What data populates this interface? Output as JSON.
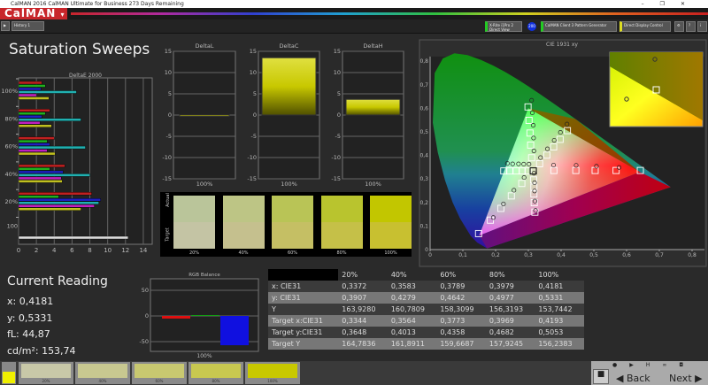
{
  "window": {
    "title": "CalMAN 2016 CalMAN Ultimate for Business 273 Days Remaining",
    "controls": [
      "–",
      "❐",
      "✕"
    ]
  },
  "logo": "CalMAN",
  "toolbar": {
    "tab": "History 1",
    "source1": "X-Rite i1Pro 2 Direct View",
    "badge": "200",
    "source2": "CalMAN Client 3 Pattern Generator",
    "source3": "Direct Display Control"
  },
  "page_title": "Saturation Sweeps",
  "colors": {
    "accent": "#c8262b",
    "yellow": "#c8c800",
    "red": "#e01010",
    "blue": "#1010e0"
  },
  "chart_data": [
    {
      "type": "bar",
      "title": "DeltaE 2000",
      "orientation": "horizontal",
      "xlim": [
        0,
        15
      ],
      "xticks": [
        "0",
        "2",
        "4",
        "6",
        "8",
        "10",
        "12",
        "14"
      ],
      "categories": [
        "100%",
        "80%",
        "60%",
        "40%",
        "20%",
        "100"
      ],
      "series_colors": [
        "#c02020",
        "#20b020",
        "#2020c0",
        "#20b0b0",
        "#c020c0",
        "#c0c020"
      ],
      "groups": [
        [
          2.6,
          3.0,
          2.5,
          6.5,
          2.0,
          3.4
        ],
        [
          3.5,
          3.0,
          2.6,
          7.0,
          2.4,
          3.7
        ],
        [
          4.0,
          3.2,
          3.5,
          7.5,
          3.2,
          4.1
        ],
        [
          5.2,
          3.5,
          5.0,
          8.0,
          4.8,
          4.9
        ],
        [
          8.2,
          4.5,
          9.2,
          9.0,
          8.5,
          7.0
        ],
        [
          12.3
        ]
      ]
    },
    {
      "type": "bar",
      "title": "DeltaL",
      "categories": [
        "100%"
      ],
      "values": [
        -0.3
      ],
      "ylim": [
        -15,
        15
      ],
      "yticks": [
        "15",
        "10",
        "5",
        "0",
        "-5",
        "-10",
        "-15"
      ]
    },
    {
      "type": "bar",
      "title": "DeltaC",
      "categories": [
        "100%"
      ],
      "values": [
        13.5
      ],
      "ylim": [
        -15,
        15
      ],
      "yticks": [
        "15",
        "10",
        "5",
        "0",
        "-5",
        "-10",
        "-15"
      ]
    },
    {
      "type": "bar",
      "title": "DeltaH",
      "categories": [
        "100%"
      ],
      "values": [
        3.7
      ],
      "ylim": [
        -15,
        15
      ],
      "yticks": [
        "15",
        "10",
        "5",
        "0",
        "-5",
        "-10",
        "-15"
      ]
    },
    {
      "type": "bar",
      "title": "RGB Balance",
      "categories": [
        "100%"
      ],
      "series": [
        {
          "color": "#e01010",
          "value": -5
        },
        {
          "color": "#10c010",
          "value": 0
        },
        {
          "color": "#1010e0",
          "value": -57
        }
      ],
      "ylim": [
        -60,
        60
      ],
      "yticks": [
        "50",
        "0",
        "-50"
      ]
    },
    {
      "type": "scatter",
      "title": "CIE 1931 xy",
      "xlim": [
        0,
        0.85
      ],
      "ylim": [
        0,
        0.85
      ],
      "xticks": [
        "0",
        "0,1",
        "0,2",
        "0,3",
        "0,4",
        "0,5",
        "0,6",
        "0,7",
        "0,8"
      ],
      "yticks": [
        "0",
        "0,1",
        "0,2",
        "0,3",
        "0,4",
        "0,5",
        "0,6",
        "0,7",
        "0,8"
      ],
      "targets": [
        [
          0.299,
          0.606
        ],
        [
          0.302,
          0.549
        ],
        [
          0.305,
          0.495
        ],
        [
          0.307,
          0.444
        ],
        [
          0.31,
          0.39
        ],
        [
          0.378,
          0.336
        ],
        [
          0.445,
          0.336
        ],
        [
          0.504,
          0.336
        ],
        [
          0.568,
          0.336
        ],
        [
          0.642,
          0.336
        ],
        [
          0.148,
          0.068
        ],
        [
          0.184,
          0.125
        ],
        [
          0.216,
          0.175
        ],
        [
          0.248,
          0.228
        ],
        [
          0.28,
          0.281
        ],
        [
          0.225,
          0.334
        ],
        [
          0.243,
          0.334
        ],
        [
          0.263,
          0.334
        ],
        [
          0.281,
          0.334
        ],
        [
          0.299,
          0.334
        ],
        [
          0.32,
          0.159
        ],
        [
          0.318,
          0.199
        ],
        [
          0.317,
          0.236
        ],
        [
          0.317,
          0.265
        ],
        [
          0.316,
          0.296
        ],
        [
          0.3344,
          0.3648
        ],
        [
          0.3564,
          0.4013
        ],
        [
          0.3773,
          0.4358
        ],
        [
          0.3969,
          0.4682
        ],
        [
          0.4193,
          0.5053
        ]
      ],
      "white_target": [
        0.315,
        0.334
      ],
      "measured": [
        [
          0.31,
          0.634
        ],
        [
          0.312,
          0.581
        ],
        [
          0.315,
          0.528
        ],
        [
          0.316,
          0.474
        ],
        [
          0.317,
          0.419
        ],
        [
          0.377,
          0.359
        ],
        [
          0.446,
          0.358
        ],
        [
          0.508,
          0.354
        ],
        [
          0.577,
          0.349
        ],
        [
          0.193,
          0.136
        ],
        [
          0.224,
          0.194
        ],
        [
          0.256,
          0.252
        ],
        [
          0.287,
          0.306
        ],
        [
          0.236,
          0.366
        ],
        [
          0.252,
          0.364
        ],
        [
          0.27,
          0.364
        ],
        [
          0.286,
          0.363
        ],
        [
          0.302,
          0.363
        ],
        [
          0.322,
          0.166
        ],
        [
          0.32,
          0.206
        ],
        [
          0.319,
          0.249
        ],
        [
          0.319,
          0.284
        ],
        [
          0.317,
          0.324
        ],
        [
          0.3372,
          0.3907
        ],
        [
          0.3583,
          0.4279
        ],
        [
          0.3789,
          0.4642
        ],
        [
          0.3979,
          0.4977
        ],
        [
          0.4181,
          0.5331
        ]
      ]
    }
  ],
  "swatches": {
    "actual_label": "Actual",
    "target_label": "Target",
    "items": [
      {
        "label": "20%",
        "actual": "#bac59a",
        "target": "#c4c4a4"
      },
      {
        "label": "40%",
        "actual": "#bdc585",
        "target": "#c5c08e"
      },
      {
        "label": "60%",
        "actual": "#b9c456",
        "target": "#c5bf64"
      },
      {
        "label": "80%",
        "actual": "#b9c42e",
        "target": "#c5c048"
      },
      {
        "label": "100%",
        "actual": "#c2c600",
        "target": "#c8c030"
      }
    ]
  },
  "current_reading": {
    "title": "Current Reading",
    "x": "x: 0,4181",
    "y": "y: 0,5331",
    "fl": "fL: 44,87",
    "cd": "cd/m²: 153,74"
  },
  "table": {
    "headers": [
      "",
      "20%",
      "40%",
      "60%",
      "80%",
      "100%"
    ],
    "rows": [
      [
        "x: CIE31",
        "0,3372",
        "0,3583",
        "0,3789",
        "0,3979",
        "0,4181"
      ],
      [
        "y: CIE31",
        "0,3907",
        "0,4279",
        "0,4642",
        "0,4977",
        "0,5331"
      ],
      [
        "Y",
        "163,9280",
        "160,7809",
        "158,3099",
        "156,3193",
        "153,7442"
      ],
      [
        "Target x:CIE31",
        "0,3344",
        "0,3564",
        "0,3773",
        "0,3969",
        "0,4193"
      ],
      [
        "Target y:CIE31",
        "0,3648",
        "0,4013",
        "0,4358",
        "0,4682",
        "0,5053"
      ],
      [
        "Target Y",
        "164,7836",
        "161,8911",
        "159,6687",
        "157,9245",
        "156,2383"
      ]
    ]
  },
  "bottom": {
    "current_color": "#f0f000",
    "patches": [
      {
        "label": "20%",
        "color": "#c8c8a8"
      },
      {
        "label": "40%",
        "color": "#c8c890"
      },
      {
        "label": "60%",
        "color": "#c8c870"
      },
      {
        "label": "80%",
        "color": "#c8c850"
      },
      {
        "label": "100%",
        "color": "#c8c800"
      }
    ],
    "back": "Back",
    "next": "Next"
  }
}
